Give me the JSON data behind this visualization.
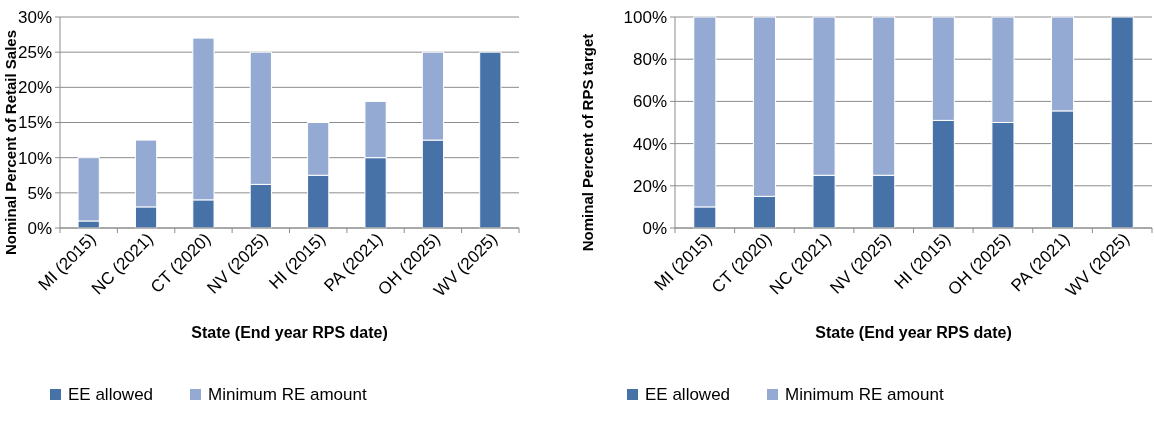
{
  "chart_data": [
    {
      "type": "bar",
      "stacked": true,
      "xlabel": "State (End year RPS date)",
      "ylabel": "Nominal Percent of Retail Sales",
      "categories": [
        "MI (2015)",
        "NC (2021)",
        "CT (2020)",
        "NV (2025)",
        "HI (2015)",
        "PA (2021)",
        "OH (2025)",
        "WV (2025)"
      ],
      "series": [
        {
          "name": "EE allowed",
          "color": "#4672a8",
          "values": [
            1,
            3,
            4,
            6.2,
            7.5,
            10,
            12.5,
            25
          ]
        },
        {
          "name": "Minimum RE amount",
          "color": "#95aad2",
          "values": [
            9,
            9.5,
            23,
            18.8,
            7.5,
            8,
            12.5,
            0
          ]
        }
      ],
      "ylim": [
        0,
        30
      ],
      "yticks": [
        {
          "value": 0,
          "label": "0%"
        },
        {
          "value": 5,
          "label": "5%"
        },
        {
          "value": 10,
          "label": "10%"
        },
        {
          "value": 15,
          "label": "15%"
        },
        {
          "value": 20,
          "label": "20%"
        },
        {
          "value": 25,
          "label": "25%"
        },
        {
          "value": 30,
          "label": "30%"
        }
      ],
      "grid": "y",
      "legend": "bottom left"
    },
    {
      "type": "bar",
      "stacked": true,
      "xlabel": "State (End year RPS date)",
      "ylabel": "Nominal Percent of RPS target",
      "categories": [
        "MI (2015)",
        "CT (2020)",
        "NC (2021)",
        "NV (2025)",
        "HI (2015)",
        "OH (2025)",
        "PA (2021)",
        "WV (2025)"
      ],
      "series": [
        {
          "name": "EE allowed",
          "color": "#4672a8",
          "values": [
            10,
            15,
            25,
            25,
            51,
            50,
            55.5,
            100
          ]
        },
        {
          "name": "Minimum RE amount",
          "color": "#95aad2",
          "values": [
            90,
            85,
            75,
            75,
            49,
            50,
            44.5,
            0
          ]
        }
      ],
      "ylim": [
        0,
        100
      ],
      "yticks": [
        {
          "value": 0,
          "label": "0%"
        },
        {
          "value": 20,
          "label": "20%"
        },
        {
          "value": 40,
          "label": "40%"
        },
        {
          "value": 60,
          "label": "60%"
        },
        {
          "value": 80,
          "label": "80%"
        },
        {
          "value": 100,
          "label": "100%"
        }
      ],
      "grid": "y",
      "legend": "bottom left"
    }
  ]
}
